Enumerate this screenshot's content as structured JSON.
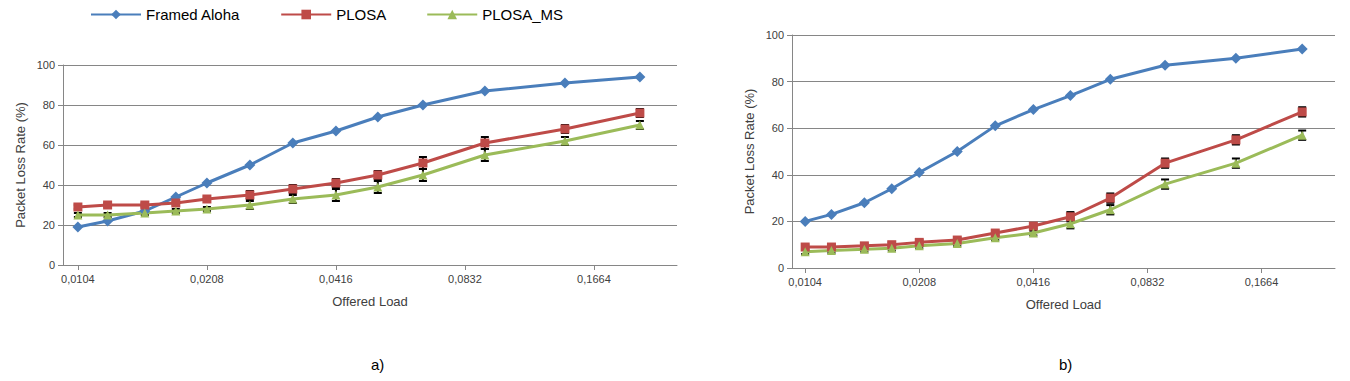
{
  "chart_data": [
    {
      "type": "line",
      "title": "a)",
      "x_label": "Offered Load",
      "y_label": "Packet Loss Rate (%)",
      "x": [
        0.0104,
        0.0122,
        0.0149,
        0.0176,
        0.0208,
        0.0262,
        0.033,
        0.0416,
        0.0521,
        0.0664,
        0.0926,
        0.1424,
        0.213
      ],
      "series": [
        {
          "name": "Framed Aloha",
          "color": "#4a7ebb",
          "marker": "diamond",
          "values": [
            19,
            22,
            27,
            34,
            41,
            50,
            61,
            67,
            74,
            80,
            87,
            91,
            94
          ]
        },
        {
          "name": "PLOSA",
          "color": "#be4b48",
          "marker": "square",
          "values": [
            29,
            30,
            30,
            31,
            33,
            35,
            38,
            41,
            45,
            51,
            61,
            68,
            76
          ],
          "errors": [
            1,
            1,
            1,
            1,
            1,
            2,
            2,
            2,
            2,
            3,
            3,
            2,
            2
          ]
        },
        {
          "name": "PLOSA_MS",
          "color": "#9bbb59",
          "marker": "triangle",
          "values": [
            25,
            25,
            26,
            27,
            28,
            30,
            33,
            35,
            39,
            45,
            55,
            62,
            70
          ],
          "errors": [
            1,
            1,
            1,
            1,
            1,
            2,
            2,
            3,
            3,
            3,
            3,
            2,
            2
          ]
        }
      ],
      "log": "x",
      "xlim": [
        0.0096,
        0.26
      ],
      "xticks": [
        {
          "value": 0.0104,
          "label": "0,0104"
        },
        {
          "value": 0.0208,
          "label": "0,0208"
        },
        {
          "value": 0.0416,
          "label": "0,0416"
        },
        {
          "value": 0.0832,
          "label": "0,0832"
        },
        {
          "value": 0.1664,
          "label": "0,1664"
        }
      ],
      "ylim": [
        0,
        100
      ],
      "yticks": [
        0,
        20,
        40,
        60,
        80,
        100
      ],
      "grid": true,
      "legend": "top-left"
    },
    {
      "type": "line",
      "title": "b)",
      "x_label": "Offered Load",
      "y_label": "Packet Loss Rate (%)",
      "x": [
        0.0104,
        0.0122,
        0.0149,
        0.0176,
        0.0208,
        0.0262,
        0.033,
        0.0416,
        0.0521,
        0.0664,
        0.0926,
        0.1424,
        0.213
      ],
      "series": [
        {
          "name": "Framed Aloha",
          "color": "#4a7ebb",
          "marker": "diamond",
          "values": [
            20,
            23,
            28,
            34,
            41,
            50,
            61,
            68,
            74,
            81,
            87,
            90,
            94
          ]
        },
        {
          "name": "PLOSA",
          "color": "#be4b48",
          "marker": "square",
          "values": [
            9,
            9,
            9.5,
            10,
            11,
            12,
            15,
            18,
            22,
            30,
            45,
            55,
            67
          ],
          "errors": [
            1,
            1,
            1,
            1,
            1,
            1,
            1,
            1,
            2,
            2,
            2,
            2,
            2
          ]
        },
        {
          "name": "PLOSA_MS",
          "color": "#9bbb59",
          "marker": "triangle",
          "values": [
            7,
            7.5,
            8,
            8.5,
            9.5,
            10.5,
            13,
            15,
            19,
            25,
            36,
            45,
            57
          ],
          "errors": [
            1,
            1,
            1,
            1,
            1,
            1,
            1,
            1,
            2,
            2,
            2,
            2,
            2
          ]
        }
      ],
      "log": "x",
      "xlim": [
        0.0096,
        0.26
      ],
      "xticks": [
        {
          "value": 0.0104,
          "label": "0,0104"
        },
        {
          "value": 0.0208,
          "label": "0,0208"
        },
        {
          "value": 0.0416,
          "label": "0,0416"
        },
        {
          "value": 0.0832,
          "label": "0,0832"
        },
        {
          "value": 0.1664,
          "label": "0,1664"
        }
      ],
      "ylim": [
        0,
        100
      ],
      "yticks": [
        0,
        20,
        40,
        60,
        80,
        100
      ],
      "grid": true
    }
  ]
}
